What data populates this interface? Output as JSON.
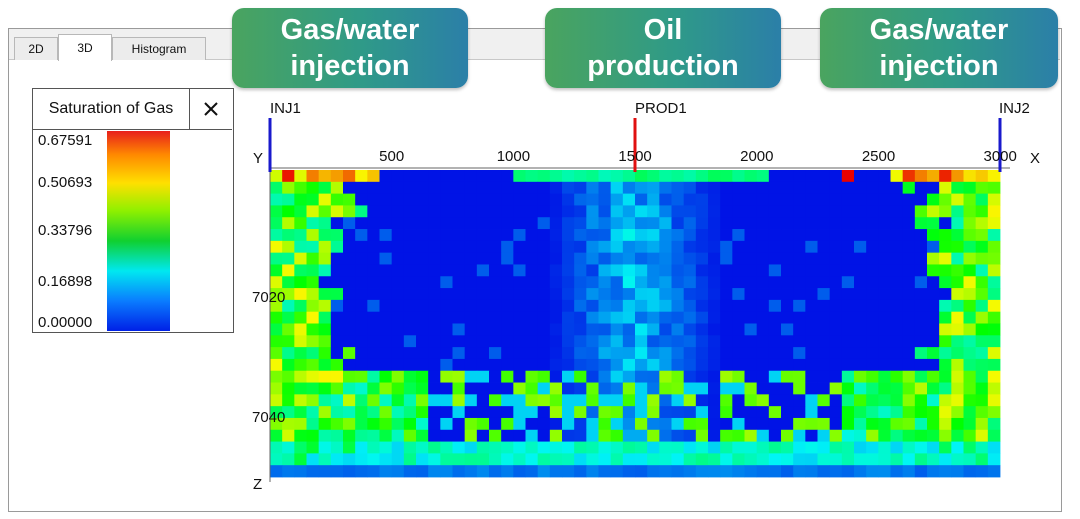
{
  "tabs": [
    "2D",
    "3D",
    "Histogram"
  ],
  "badges": [
    "Gas/water injection",
    "Oil production",
    "Gas/water injection"
  ],
  "legend": {
    "title": "Saturation of Gas",
    "labels": [
      "0.67591",
      "0.50693",
      "0.33796",
      "0.16898",
      "0.00000"
    ]
  },
  "plot": {
    "wells": [
      "INJ1",
      "PROD1",
      "INJ2"
    ],
    "axis_labels": {
      "y": "Y",
      "x": "X",
      "z": "Z"
    },
    "x_ticks": [
      "500",
      "1000",
      "1500",
      "2000",
      "2500",
      "3000"
    ],
    "z_ticks": [
      "7020",
      "7040"
    ]
  }
}
